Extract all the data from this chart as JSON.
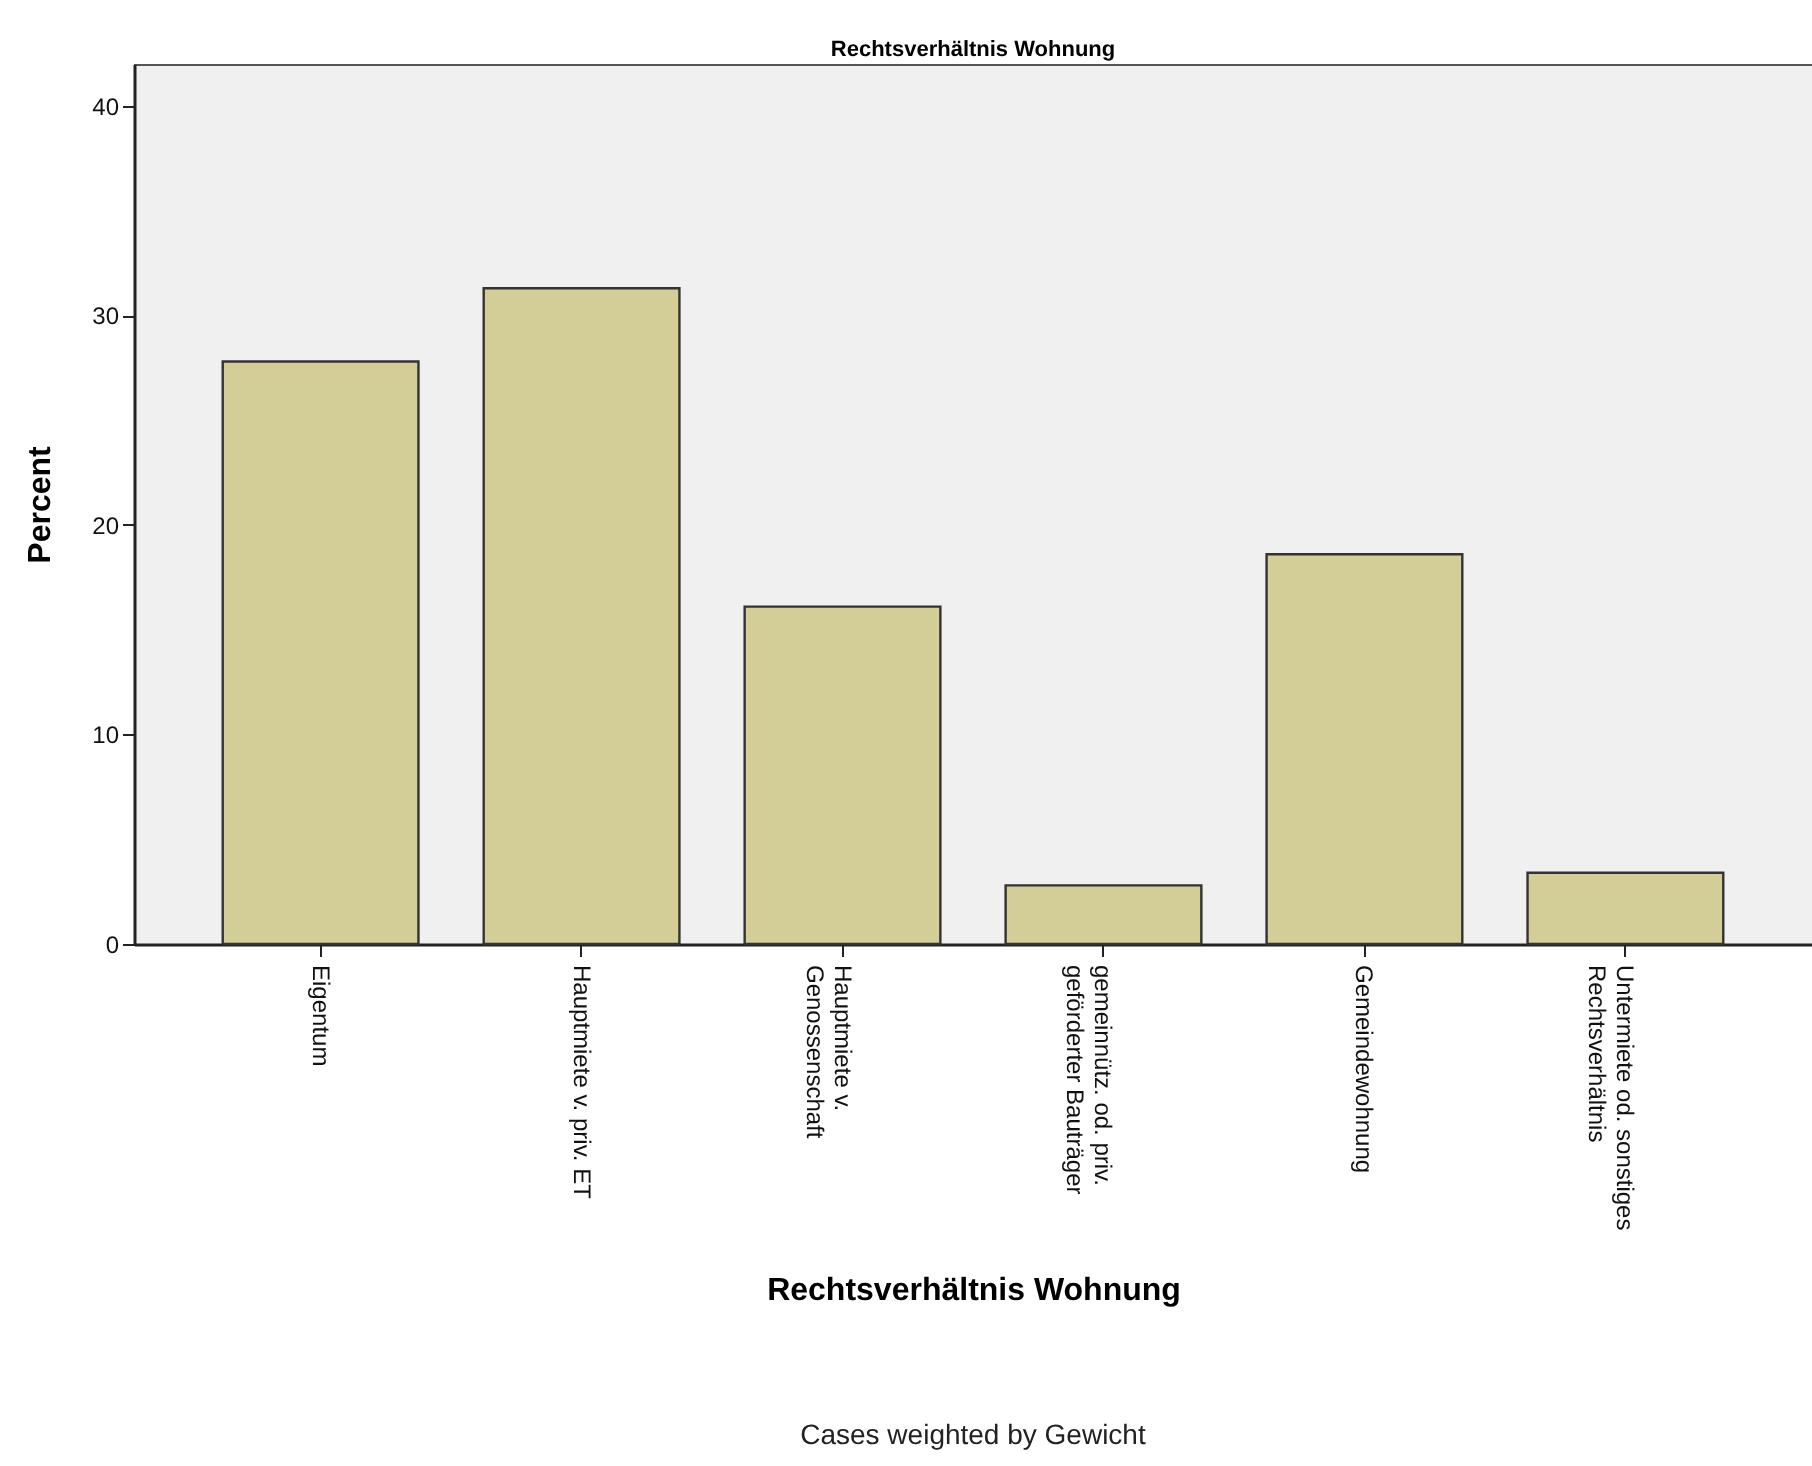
{
  "chart_data": {
    "type": "bar",
    "title": "Rechtsverhältnis Wohnung",
    "xlabel": "Rechtsverhältnis Wohnung",
    "ylabel": "Percent",
    "categories": [
      "Eigentum",
      "Hauptmiete v. priv. ET",
      "Hauptmiete v.\nGenossenschaft",
      "gemeinnütz. od. priv.\ngeförderter Bauträger",
      "Gemeindewohnung",
      "Untermiete od. sonstiges\nRechtsverhältnis"
    ],
    "values": [
      27.8,
      31.3,
      16.1,
      2.8,
      18.6,
      3.4
    ],
    "color": "#d3ce97",
    "ylim": [
      0,
      42
    ],
    "yticks": [
      0,
      10,
      20,
      30,
      40
    ],
    "grid": false,
    "annotations": [
      "Cases weighted by Gewicht"
    ]
  }
}
